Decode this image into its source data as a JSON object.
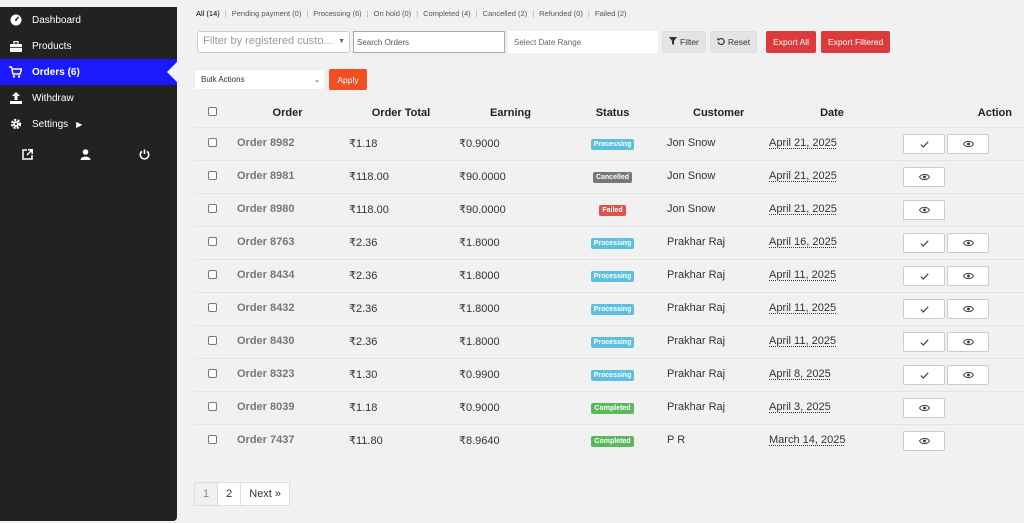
{
  "sidebar": {
    "items": [
      {
        "label": "Dashboard",
        "icon": "dashboard-icon"
      },
      {
        "label": "Products",
        "icon": "briefcase-icon"
      },
      {
        "label": "Orders (6)",
        "icon": "cart-icon"
      },
      {
        "label": "Withdraw",
        "icon": "upload-icon"
      },
      {
        "label": "Settings",
        "icon": "gear-icon"
      }
    ],
    "footer_icons": [
      "external-link-icon",
      "user-icon",
      "power-icon"
    ]
  },
  "status_tabs": [
    "All (14)",
    "Pending payment (0)",
    "Processing (6)",
    "On hold (0)",
    "Completed (4)",
    "Cancelled (2)",
    "Refunded (0)",
    "Failed (2)"
  ],
  "filters": {
    "customer_placeholder": "Filter by registered custo...",
    "search_placeholder": "Search Orders",
    "date_placeholder": "Select Date Range",
    "filter_label": "Filter",
    "reset_label": "Reset",
    "export_all_label": "Export All",
    "export_filtered_label": "Export Filtered"
  },
  "bulk": {
    "selected": "Bulk Actions",
    "apply_label": "Apply"
  },
  "table": {
    "headers": {
      "order": "Order",
      "total": "Order Total",
      "earning": "Earning",
      "status": "Status",
      "customer": "Customer",
      "date": "Date",
      "action": "Action"
    },
    "rows": [
      {
        "order": "Order 8982",
        "total": "₹1.18",
        "earning": "₹0.9000",
        "status": "Processing",
        "customer": "Jon Snow",
        "date": "April 21, 2025",
        "actions": [
          "check",
          "view"
        ]
      },
      {
        "order": "Order 8981",
        "total": "₹118.00",
        "earning": "₹90.0000",
        "status": "Cancelled",
        "customer": "Jon Snow",
        "date": "April 21, 2025",
        "actions": [
          "view"
        ]
      },
      {
        "order": "Order 8980",
        "total": "₹118.00",
        "earning": "₹90.0000",
        "status": "Failed",
        "customer": "Jon Snow",
        "date": "April 21, 2025",
        "actions": [
          "view"
        ]
      },
      {
        "order": "Order 8763",
        "total": "₹2.36",
        "earning": "₹1.8000",
        "status": "Processing",
        "customer": "Prakhar Raj",
        "date": "April 16, 2025",
        "actions": [
          "check",
          "view"
        ]
      },
      {
        "order": "Order 8434",
        "total": "₹2.36",
        "earning": "₹1.8000",
        "status": "Processing",
        "customer": "Prakhar Raj",
        "date": "April 11, 2025",
        "actions": [
          "check",
          "view"
        ]
      },
      {
        "order": "Order 8432",
        "total": "₹2.36",
        "earning": "₹1.8000",
        "status": "Processing",
        "customer": "Prakhar Raj",
        "date": "April 11, 2025",
        "actions": [
          "check",
          "view"
        ]
      },
      {
        "order": "Order 8430",
        "total": "₹2.36",
        "earning": "₹1.8000",
        "status": "Processing",
        "customer": "Prakhar Raj",
        "date": "April 11, 2025",
        "actions": [
          "check",
          "view"
        ]
      },
      {
        "order": "Order 8323",
        "total": "₹1.30",
        "earning": "₹0.9900",
        "status": "Processing",
        "customer": "Prakhar Raj",
        "date": "April 8, 2025",
        "actions": [
          "check",
          "view"
        ]
      },
      {
        "order": "Order 8039",
        "total": "₹1.18",
        "earning": "₹0.9000",
        "status": "Completed",
        "customer": "Prakhar Raj",
        "date": "April 3, 2025",
        "actions": [
          "view"
        ]
      },
      {
        "order": "Order 7437",
        "total": "₹11.80",
        "earning": "₹8.9640",
        "status": "Completed",
        "customer": "P R",
        "date": "March 14, 2025",
        "actions": [
          "view"
        ]
      }
    ]
  },
  "status_colors": {
    "Processing": "#5bc0de",
    "Cancelled": "#777777",
    "Failed": "#d9534f",
    "Completed": "#5cb85c"
  },
  "pagination": {
    "pages": [
      "1",
      "2"
    ],
    "current": "1",
    "next_label": "Next »"
  },
  "colors": {
    "sidebar_bg": "#222222",
    "active_menu": "#1a1aff",
    "export_red": "#dd3b3b",
    "apply_orange": "#f04e23"
  }
}
